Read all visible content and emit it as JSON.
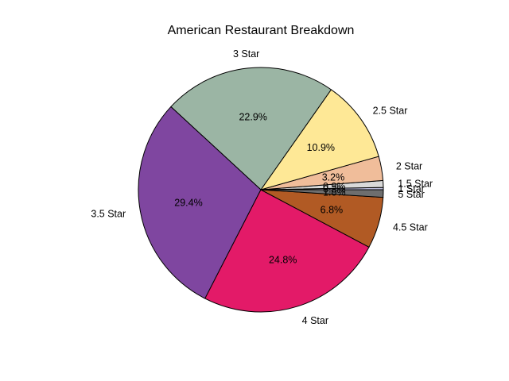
{
  "chart_data": {
    "type": "pie",
    "title": "American Restaurant Breakdown",
    "start_angle_deg": 0,
    "direction": "counterclockwise",
    "slices": [
      {
        "label": "1 Star",
        "value": 0.3,
        "pct_label": "0.3%",
        "color": "#bcbddc"
      },
      {
        "label": "1.5 Star",
        "value": 0.9,
        "pct_label": "0.9%",
        "color": "#d9d9d9"
      },
      {
        "label": "2 Star",
        "value": 3.2,
        "pct_label": "3.2%",
        "color": "#f0bd9a"
      },
      {
        "label": "2.5 Star",
        "value": 10.9,
        "pct_label": "10.9%",
        "color": "#fee896"
      },
      {
        "label": "3 Star",
        "value": 22.9,
        "pct_label": "22.9%",
        "color": "#9bb5a4"
      },
      {
        "label": "3.5 Star",
        "value": 29.4,
        "pct_label": "29.4%",
        "color": "#7f46a0"
      },
      {
        "label": "4 Star",
        "value": 24.8,
        "pct_label": "24.8%",
        "color": "#e31a68"
      },
      {
        "label": "4.5 Star",
        "value": 6.8,
        "pct_label": "6.8%",
        "color": "#b15a24"
      },
      {
        "label": "5 Star",
        "value": 1.0,
        "pct_label": "1.0%",
        "color": "#6e6e6e"
      }
    ]
  }
}
